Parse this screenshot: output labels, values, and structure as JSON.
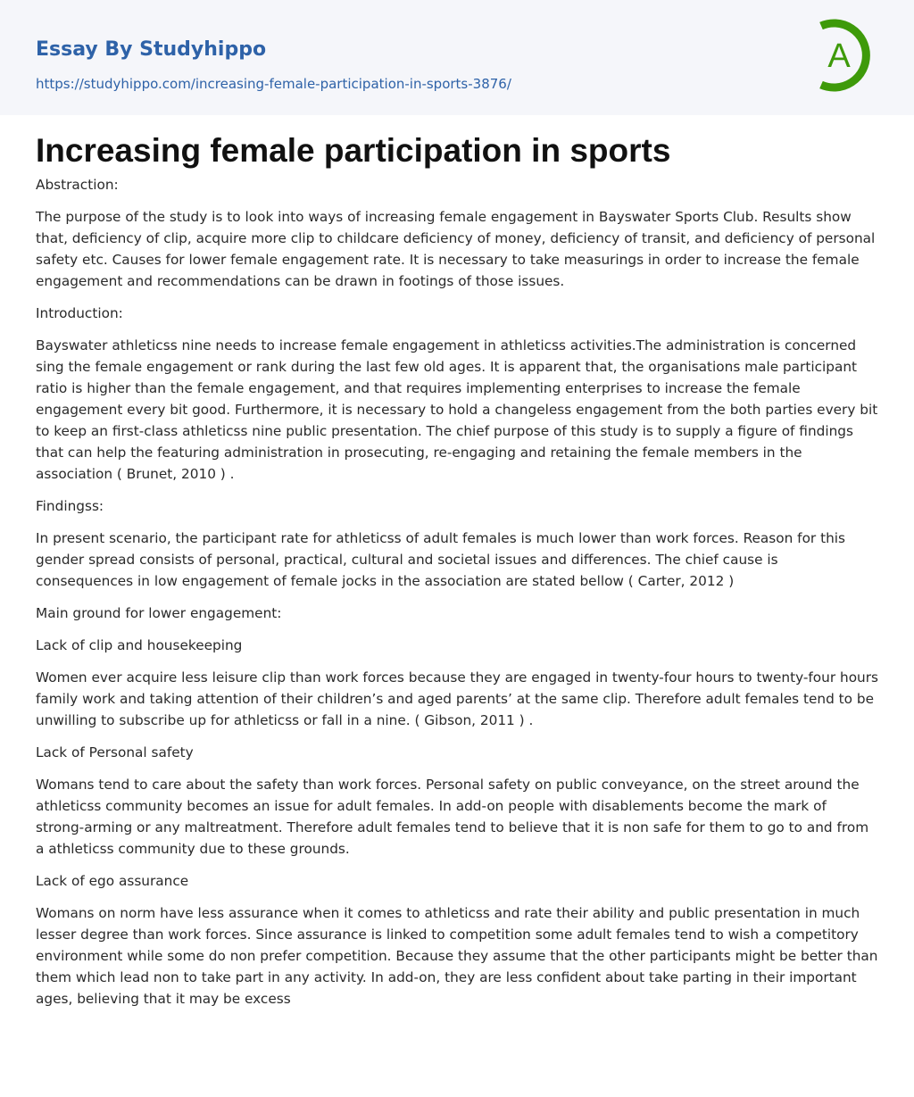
{
  "header": {
    "brand": "Essay By Studyhippo",
    "url": "https://studyhippo.com/increasing-female-participation-in-sports-3876/",
    "logo_letter": "A",
    "logo_color": "#3e9a0a"
  },
  "title": "Increasing female participation in sports",
  "paragraphs": [
    "Abstraction:",
    "The purpose of the study is to look into ways of increasing female engagement in Bayswater Sports Club. Results show that, deficiency of clip, acquire more clip to childcare deficiency of money, deficiency of transit, and deficiency of personal safety etc. Causes for lower female engagement rate. It is necessary to take measurings in order to increase the female engagement and recommendations can be drawn in footings of those issues.",
    "Introduction:",
    "Bayswater athleticss nine needs to increase female engagement in athleticss activities.The administration is concerned sing the female engagement or rank during the last few old ages. It is apparent that, the organisations male participant ratio is higher than the female engagement, and that requires implementing enterprises to increase the female engagement every bit good. Furthermore, it is necessary to hold a changeless engagement from the both parties every bit to keep an first-class athleticss nine public presentation. The chief purpose of this study is to supply a figure of findings that can help the featuring administration in prosecuting, re-engaging and retaining the female members in the association ( Brunet, 2010 ) .",
    "Findingss:",
    "In present scenario, the participant rate for athleticss of adult females is much lower than work forces. Reason for this gender spread consists of personal, practical, cultural and societal issues and differences. The chief cause is consequences in low engagement of female jocks in the association are stated bellow ( Carter, 2012 )",
    "Main ground for lower engagement:",
    "Lack of clip and housekeeping",
    "Women ever acquire less leisure clip than work forces because they are engaged in twenty-four hours to twenty-four hours family work and taking attention of their children’s and aged parents’ at the same clip. Therefore adult females tend to be unwilling to subscribe up for athleticss or fall in a nine. ( Gibson, 2011 ) .",
    "Lack of Personal safety",
    "Womans tend to care about the safety than work forces. Personal safety on public conveyance, on the street around the athleticss community becomes an issue for adult females. In add-on people with disablements become the mark of strong-arming or any maltreatment. Therefore adult females tend to believe that it is non safe for them to go to and from a athleticss community due to these grounds.",
    "Lack of ego assurance",
    "Womans on norm have less assurance when it comes to athleticss and rate their ability and public presentation in much lesser degree than work forces. Since assurance is linked to competition some adult females tend to wish a competitory environment while some do non prefer competition. Because they assume that the other participants might be better than them which lead non to take part in any activity. In add-on, they are less confident about take parting in their important ages, believing that it may be excess"
  ]
}
